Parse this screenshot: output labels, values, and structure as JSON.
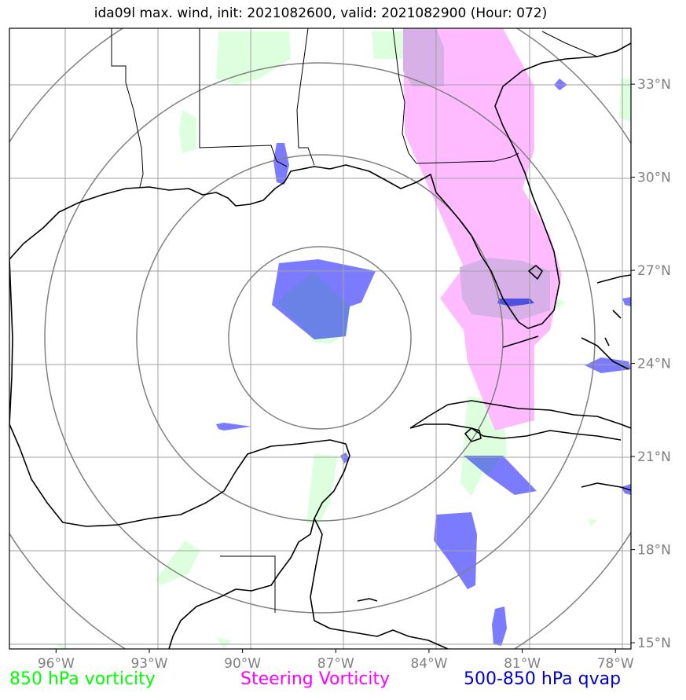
{
  "title": "ida09l max. wind, init: 2021082600, valid: 2021082900 (Hour: 072)",
  "map": {
    "lon_range": [
      -97.5,
      -77.5
    ],
    "lat_range": [
      14.8,
      34.8
    ],
    "gridlines": true,
    "lon_ticks": [
      {
        "value": -96,
        "label": "96°W"
      },
      {
        "value": -93,
        "label": "93°W"
      },
      {
        "value": -90,
        "label": "90°W"
      },
      {
        "value": -87,
        "label": "87°W"
      },
      {
        "value": -84,
        "label": "84°W"
      },
      {
        "value": -81,
        "label": "81°W"
      },
      {
        "value": -78,
        "label": "78°W"
      }
    ],
    "lat_ticks": [
      {
        "value": 15,
        "label": "15°N"
      },
      {
        "value": 18,
        "label": "18°N"
      },
      {
        "value": 21,
        "label": "21°N"
      },
      {
        "value": 24,
        "label": "24°N"
      },
      {
        "value": 27,
        "label": "27°N"
      },
      {
        "value": 30,
        "label": "30°N"
      },
      {
        "value": 33,
        "label": "33°N"
      }
    ],
    "range_rings_center": [
      -87.8,
      25.1
    ]
  },
  "legend": [
    {
      "label": "850 hPa vorticity",
      "color": "#00ff00"
    },
    {
      "label": "Steering Vorticity",
      "color": "#ff00ff"
    },
    {
      "label": "500-850 hPa qvap",
      "color": "#0000cc"
    }
  ],
  "colors": {
    "vorticity_850": "#ddffdd",
    "steering": "#ffbbff",
    "qvap": "#6060ff",
    "coast": "#000000",
    "grid": "#a0a0a0",
    "ring": "#808080"
  }
}
